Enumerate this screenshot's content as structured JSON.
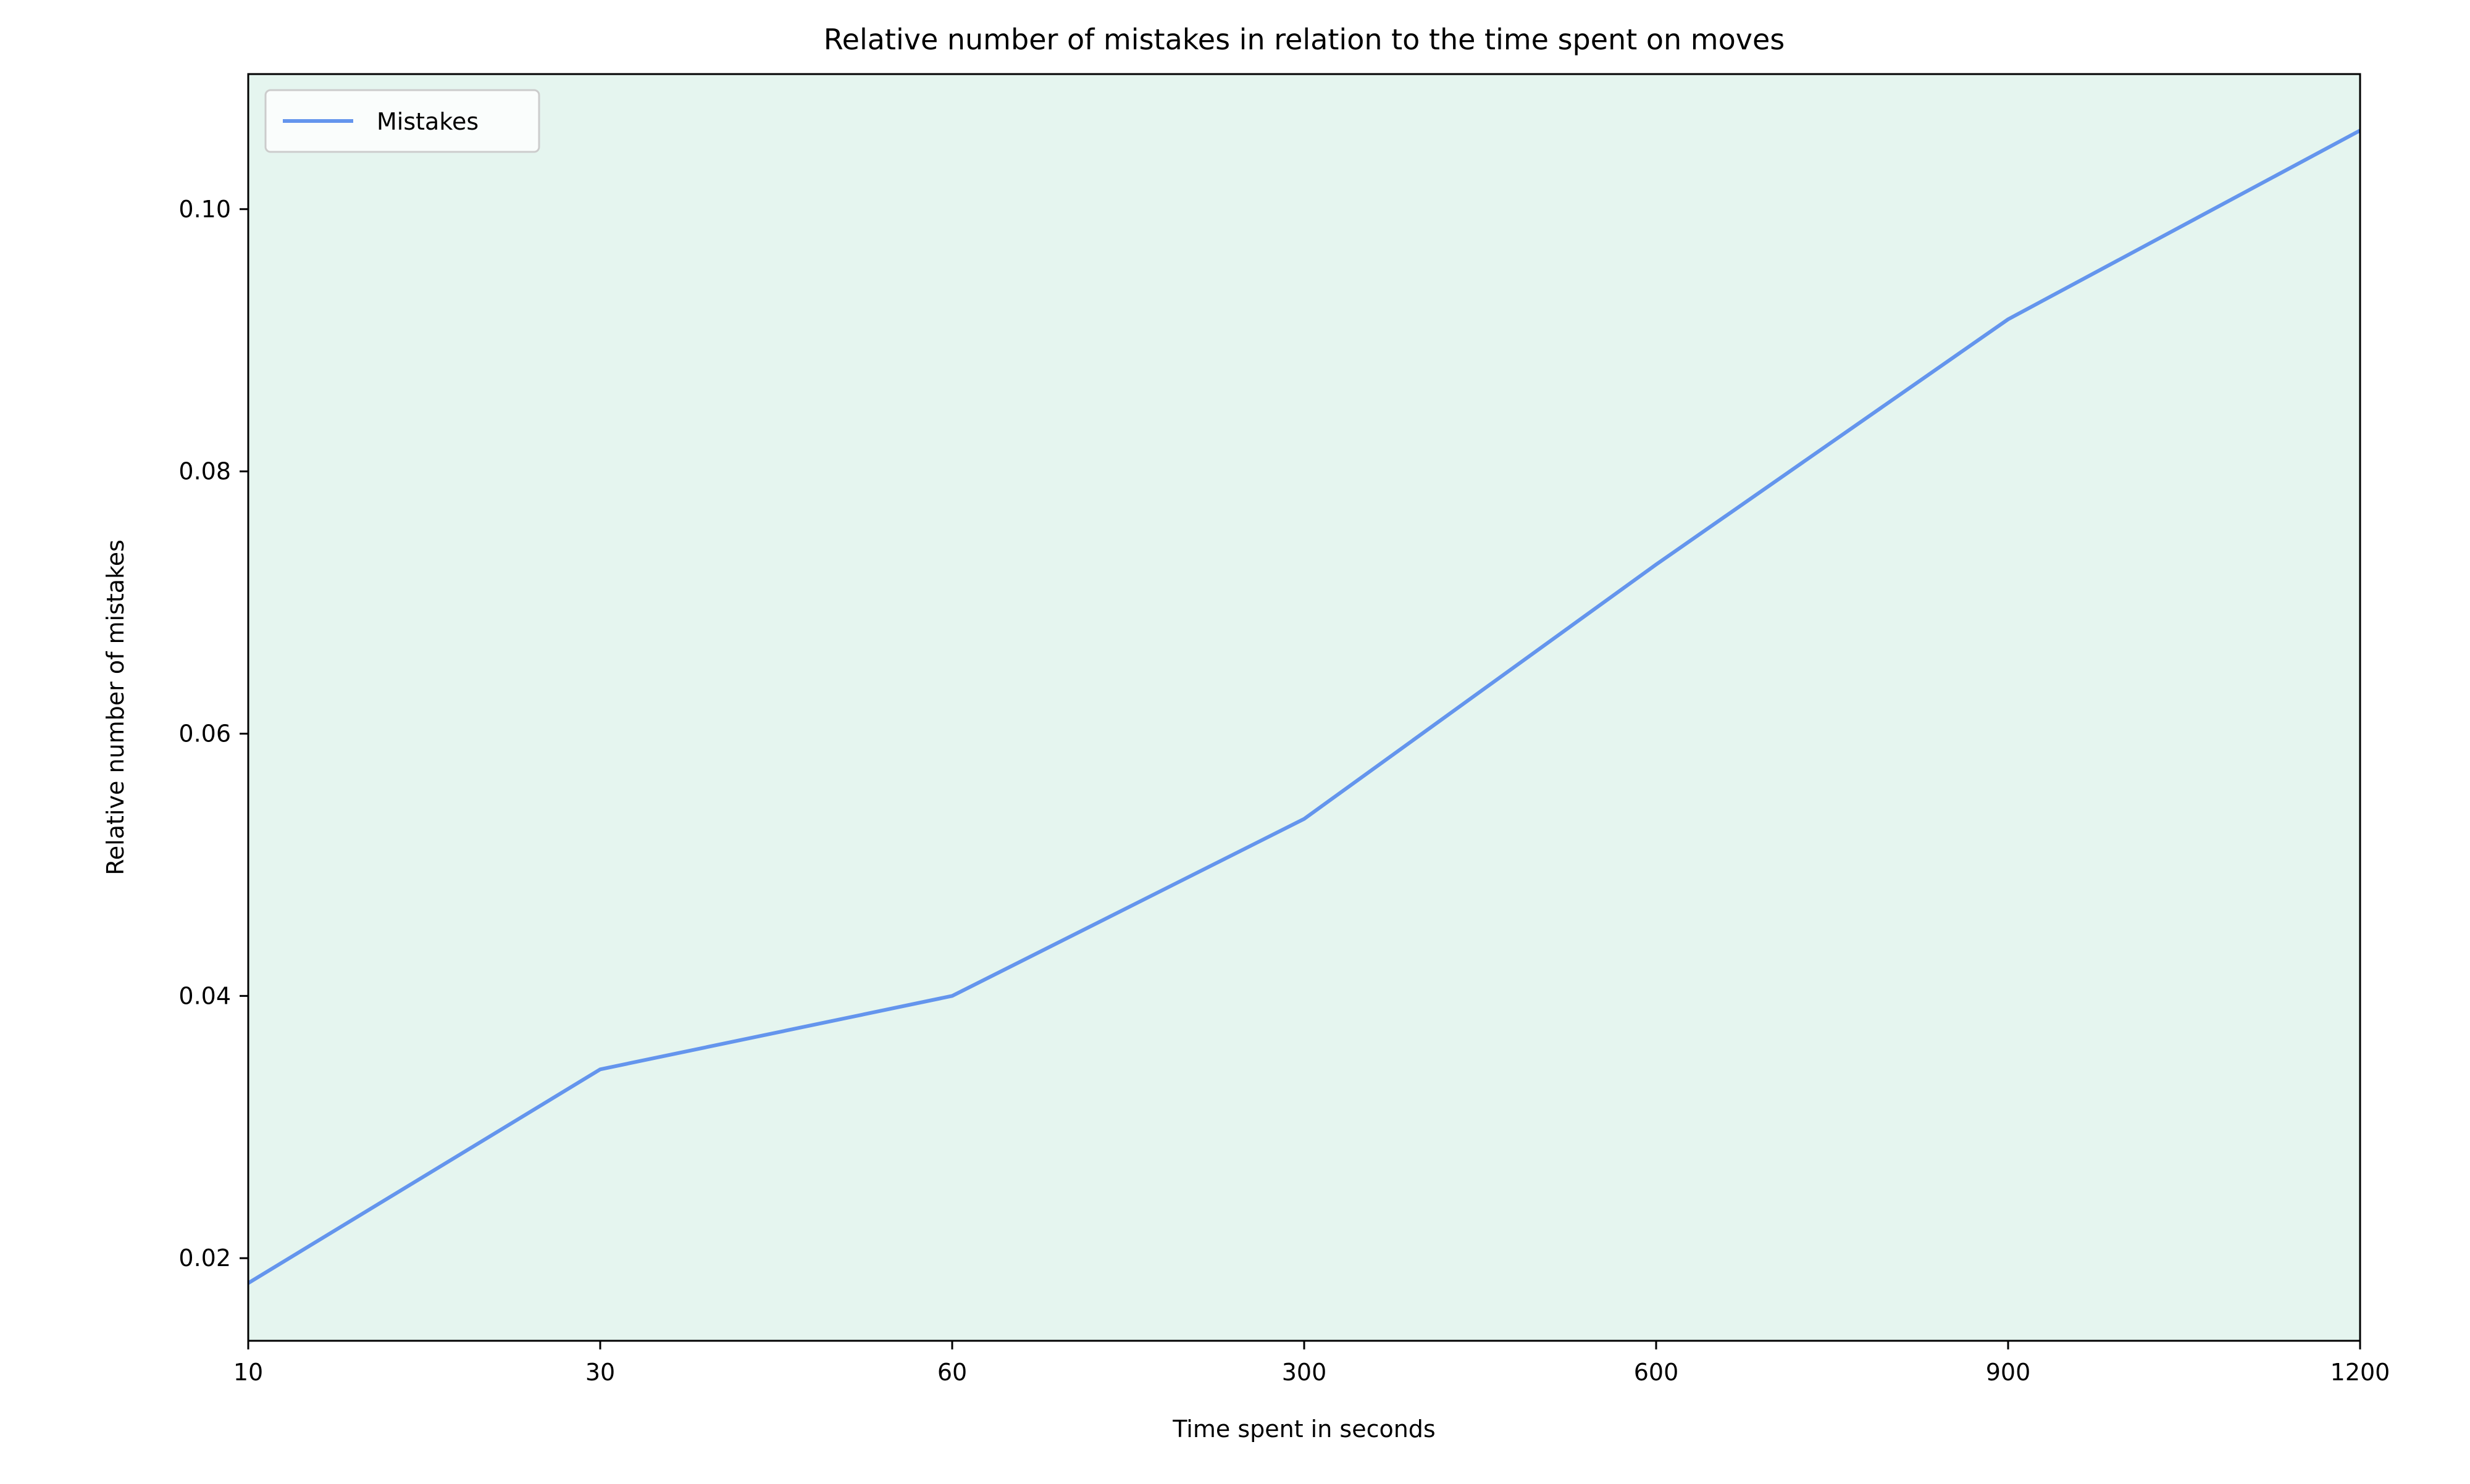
{
  "chart_data": {
    "type": "line",
    "title": "Relative number of mistakes in relation to the time spent on moves",
    "xlabel": "Time spent in seconds",
    "ylabel": "Relative number of mistakes",
    "x_tick_labels": [
      "10",
      "30",
      "60",
      "300",
      "600",
      "900",
      "1200"
    ],
    "x_axis_note": "x ticks are evenly spaced (categorical spacing)",
    "y_ticks": [
      0.02,
      0.04,
      0.06,
      0.08,
      0.1
    ],
    "y_tick_labels": [
      "0.02",
      "0.04",
      "0.06",
      "0.08",
      "0.10"
    ],
    "ylim": [
      0.0137,
      0.1103
    ],
    "grid": false,
    "legend_position": "upper left",
    "plot_background": "#e5f5ef",
    "series": [
      {
        "name": "Mistakes",
        "color": "#6495ed",
        "x": [
          "10",
          "30",
          "60",
          "300",
          "600",
          "900",
          "1200"
        ],
        "values": [
          0.0181,
          0.0344,
          0.04,
          0.0535,
          0.0729,
          0.0916,
          0.106
        ]
      }
    ]
  }
}
